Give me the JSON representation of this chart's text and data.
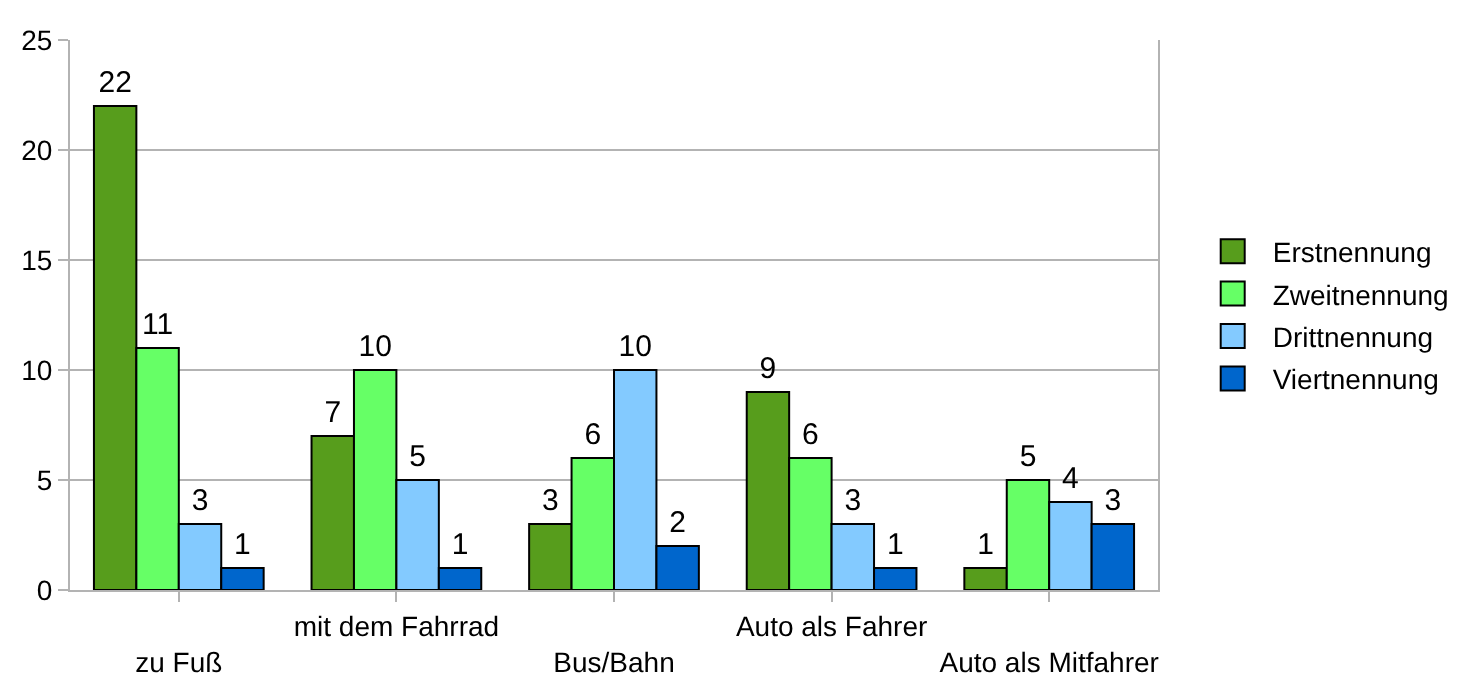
{
  "chart_data": {
    "type": "bar",
    "categories": [
      "zu Fuß",
      "mit dem Fahrrad",
      "Bus/Bahn",
      "Auto als Fahrer",
      "Auto als Mitfahrer"
    ],
    "series": [
      {
        "name": "Erstnennung",
        "color": "#579d1c",
        "values": [
          22,
          7,
          3,
          9,
          1
        ]
      },
      {
        "name": "Zweitnennung",
        "color": "#66ff66",
        "values": [
          11,
          10,
          6,
          6,
          5
        ]
      },
      {
        "name": "Drittnennung",
        "color": "#83caff",
        "values": [
          3,
          5,
          10,
          3,
          4
        ]
      },
      {
        "name": "Viertnennung",
        "color": "#0066cc",
        "values": [
          1,
          1,
          2,
          1,
          3
        ]
      }
    ],
    "ylim": [
      0,
      25
    ],
    "yticks": [
      0,
      5,
      10,
      15,
      20,
      25
    ],
    "grid": "y",
    "legend": "right",
    "data_labels": true
  }
}
